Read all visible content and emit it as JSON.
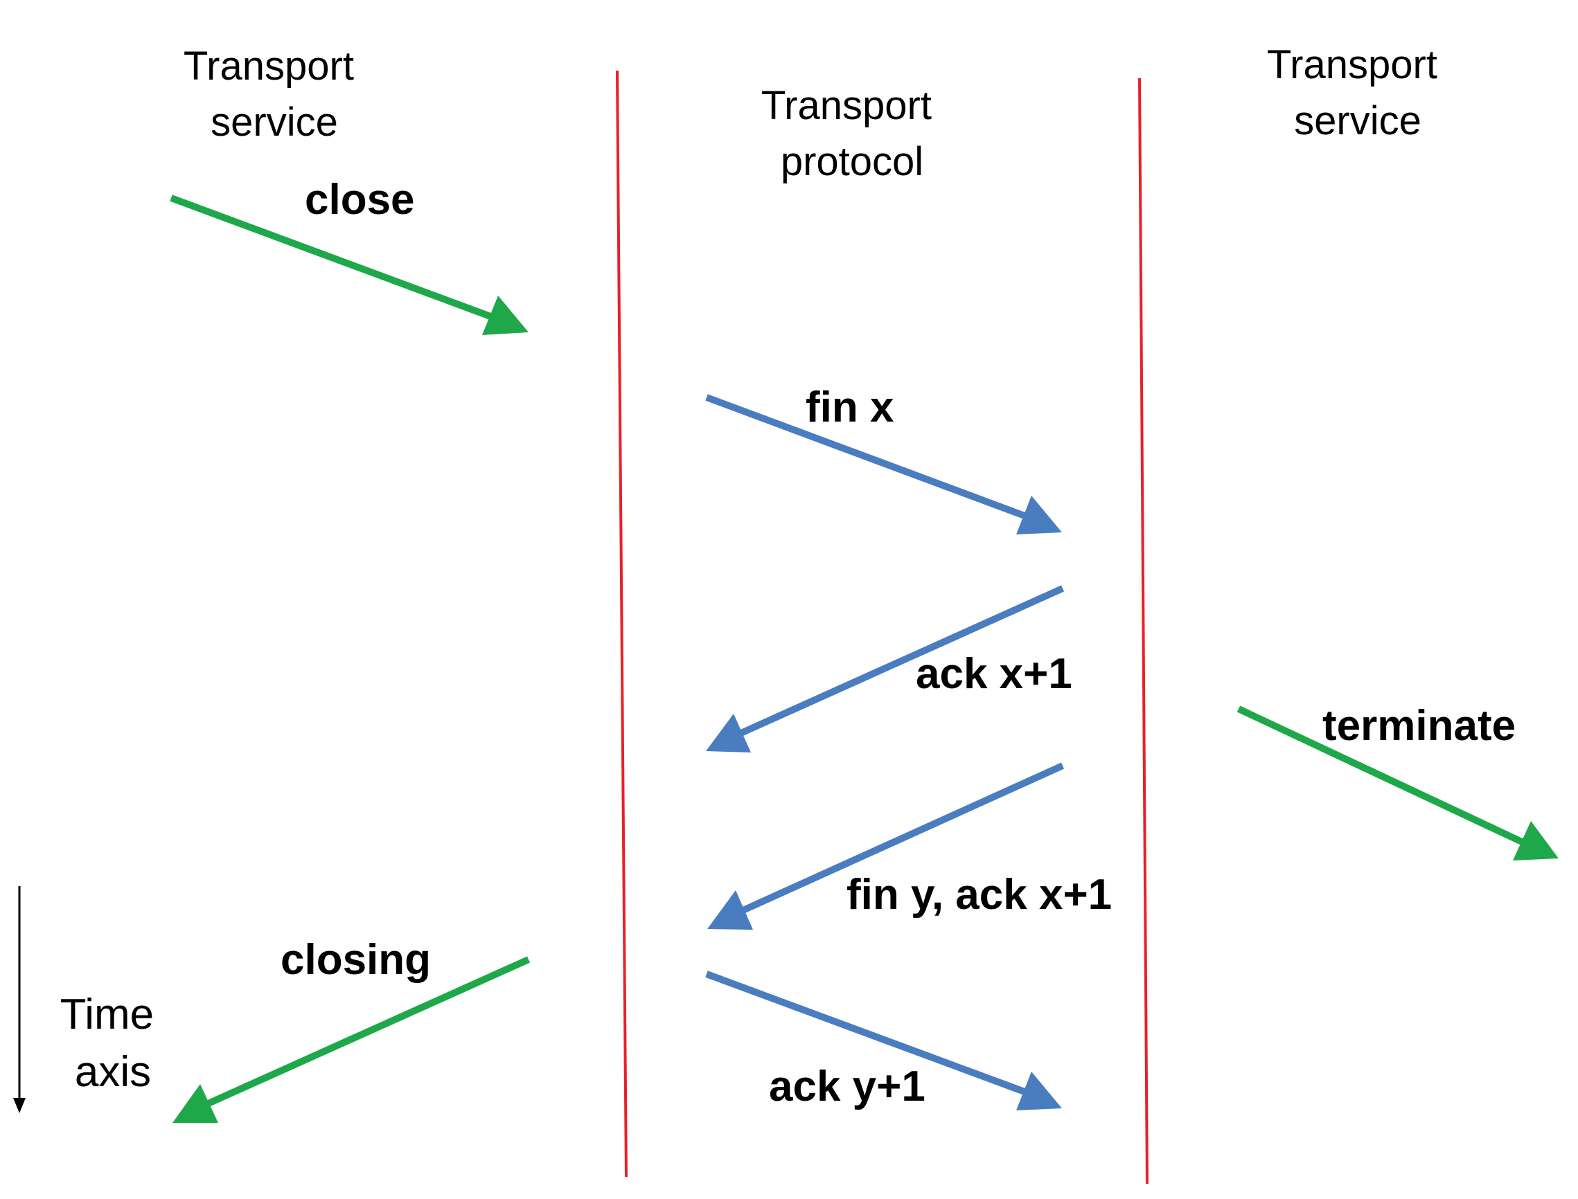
{
  "columns": {
    "left_title": [
      "Transport",
      "service"
    ],
    "middle_title": [
      "Transport",
      "protocol"
    ],
    "right_title": [
      "Transport",
      "service"
    ]
  },
  "messages": {
    "close": "close",
    "fin_x": "fin x",
    "ack_x1": "ack x+1",
    "terminate": "terminate",
    "fin_y_ack": "fin y, ack x+1",
    "closing": "closing",
    "ack_y1": "ack y+1"
  },
  "time_axis": [
    "Time",
    "axis"
  ],
  "colors": {
    "service_arrow": "#1ea84a",
    "protocol_arrow": "#4a7dbf",
    "boundary_line": "#e8202a",
    "time_axis": "#000000"
  }
}
